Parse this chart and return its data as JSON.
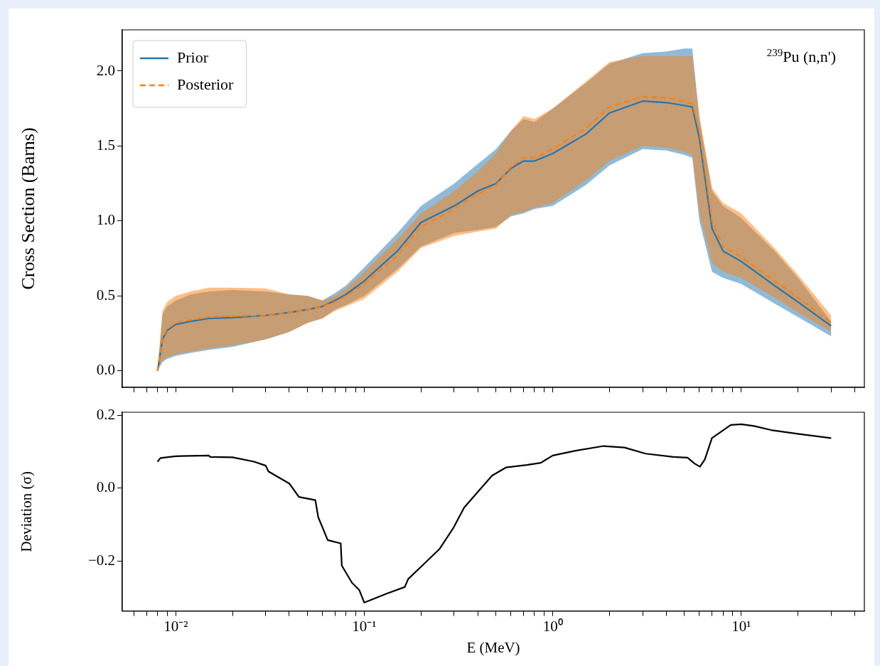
{
  "chart_data": [
    {
      "type": "line",
      "ylabel": "Cross Section (Barns)",
      "legend": "top left",
      "tick_labels": "y",
      "annotations": [
        "$^{239}$Pu (n,n')"
      ],
      "xlim": [
        0.0052,
        45
      ],
      "ylim": [
        -0.11,
        2.275
      ],
      "log": "x",
      "xticks": [
        {
          "value": 0.006,
          "label": null
        },
        {
          "value": 0.007,
          "label": null
        },
        {
          "value": 0.008,
          "label": null
        },
        {
          "value": 0.009,
          "label": null
        },
        {
          "value": 0.01,
          "label": null
        },
        {
          "value": 0.02,
          "label": null
        },
        {
          "value": 0.03,
          "label": null
        },
        {
          "value": 0.04,
          "label": null
        },
        {
          "value": 0.05,
          "label": null
        },
        {
          "value": 0.06,
          "label": null
        },
        {
          "value": 0.07,
          "label": null
        },
        {
          "value": 0.08,
          "label": null
        },
        {
          "value": 0.09,
          "label": null
        },
        {
          "value": 0.1,
          "label": null
        },
        {
          "value": 0.2,
          "label": null
        },
        {
          "value": 0.3,
          "label": null
        },
        {
          "value": 0.4,
          "label": null
        },
        {
          "value": 0.5,
          "label": null
        },
        {
          "value": 0.6,
          "label": null
        },
        {
          "value": 0.7,
          "label": null
        },
        {
          "value": 0.8,
          "label": null
        },
        {
          "value": 0.9,
          "label": null
        },
        {
          "value": 1,
          "label": null
        },
        {
          "value": 2,
          "label": null
        },
        {
          "value": 3,
          "label": null
        },
        {
          "value": 4,
          "label": null
        },
        {
          "value": 5,
          "label": null
        },
        {
          "value": 6,
          "label": null
        },
        {
          "value": 7,
          "label": null
        },
        {
          "value": 8,
          "label": null
        },
        {
          "value": 9,
          "label": null
        },
        {
          "value": 10,
          "label": null
        },
        {
          "value": 20,
          "label": null
        },
        {
          "value": 30,
          "label": null
        },
        {
          "value": 40,
          "label": null
        }
      ],
      "yticks": [
        {
          "value": 0,
          "label": "0.0"
        },
        {
          "value": 0.5,
          "label": "0.5"
        },
        {
          "value": 1,
          "label": "1.0"
        },
        {
          "value": 1.5,
          "label": "1.5"
        },
        {
          "value": 2,
          "label": "2.0"
        }
      ],
      "x": [
        0.008,
        0.0085,
        0.009,
        0.01,
        0.012,
        0.015,
        0.02,
        0.03,
        0.04,
        0.05,
        0.06,
        0.07,
        0.08,
        0.1,
        0.15,
        0.2,
        0.3,
        0.4,
        0.5,
        0.6,
        0.7,
        0.8,
        1,
        1.5,
        2,
        3,
        4,
        5,
        5.5,
        6,
        7,
        8,
        10,
        15,
        20,
        30
      ],
      "series": [
        {
          "name": "Prior",
          "color": "#1f77b4",
          "line_style": "solid",
          "values": [
            0,
            0.21,
            0.27,
            0.31,
            0.33,
            0.35,
            0.355,
            0.37,
            0.39,
            0.41,
            0.43,
            0.47,
            0.51,
            0.6,
            0.8,
            0.99,
            1.1,
            1.2,
            1.25,
            1.35,
            1.4,
            1.4,
            1.45,
            1.58,
            1.72,
            1.8,
            1.79,
            1.77,
            1.76,
            1.55,
            0.95,
            0.8,
            0.73,
            0.57,
            0.46,
            0.3
          ],
          "upper": [
            0,
            0.38,
            0.43,
            0.47,
            0.51,
            0.53,
            0.54,
            0.53,
            0.51,
            0.5,
            0.47,
            0.52,
            0.57,
            0.69,
            0.92,
            1.1,
            1.25,
            1.38,
            1.48,
            1.6,
            1.68,
            1.66,
            1.75,
            1.92,
            2.05,
            2.12,
            2.13,
            2.15,
            2.15,
            1.68,
            1.2,
            1.1,
            1.02,
            0.8,
            0.62,
            0.33
          ],
          "lower": [
            0,
            0.06,
            0.08,
            0.1,
            0.12,
            0.14,
            0.16,
            0.21,
            0.26,
            0.32,
            0.35,
            0.41,
            0.44,
            0.5,
            0.68,
            0.83,
            0.92,
            0.94,
            0.96,
            1.03,
            1.05,
            1.08,
            1.1,
            1.24,
            1.37,
            1.48,
            1.47,
            1.44,
            1.42,
            1,
            0.66,
            0.62,
            0.58,
            0.45,
            0.36,
            0.23
          ]
        },
        {
          "name": "Posterior",
          "color": "#ff7f0e",
          "line_style": "dashed",
          "values": [
            0,
            0.22,
            0.28,
            0.32,
            0.34,
            0.36,
            0.365,
            0.37,
            0.39,
            0.41,
            0.43,
            0.46,
            0.5,
            0.58,
            0.77,
            0.96,
            1.08,
            1.18,
            1.24,
            1.36,
            1.42,
            1.42,
            1.48,
            1.62,
            1.76,
            1.83,
            1.82,
            1.8,
            1.78,
            1.6,
            1,
            0.83,
            0.76,
            0.6,
            0.49,
            0.32
          ],
          "upper": [
            0,
            0.4,
            0.46,
            0.5,
            0.53,
            0.555,
            0.555,
            0.55,
            0.51,
            0.5,
            0.47,
            0.5,
            0.55,
            0.66,
            0.88,
            1.05,
            1.2,
            1.33,
            1.45,
            1.6,
            1.7,
            1.68,
            1.75,
            1.93,
            2.06,
            2.1,
            2.1,
            2.1,
            2.1,
            1.7,
            1.22,
            1.12,
            1.05,
            0.82,
            0.64,
            0.37
          ],
          "lower": [
            0,
            0.07,
            0.09,
            0.11,
            0.13,
            0.15,
            0.17,
            0.21,
            0.26,
            0.32,
            0.35,
            0.4,
            0.43,
            0.48,
            0.66,
            0.82,
            0.9,
            0.93,
            0.95,
            1.04,
            1.06,
            1.09,
            1.12,
            1.27,
            1.4,
            1.5,
            1.49,
            1.46,
            1.44,
            1.05,
            0.72,
            0.66,
            0.62,
            0.49,
            0.39,
            0.26
          ]
        }
      ]
    },
    {
      "type": "line",
      "ylabel": "Deviation (σ)",
      "xlabel": "E (MeV)",
      "xlim": [
        0.0052,
        45
      ],
      "ylim": [
        -0.338,
        0.209
      ],
      "log": "x",
      "xticks": [
        {
          "value": 0.006,
          "label": null
        },
        {
          "value": 0.007,
          "label": null
        },
        {
          "value": 0.008,
          "label": null
        },
        {
          "value": 0.009,
          "label": null
        },
        {
          "value": 0.01,
          "label": "10⁻²"
        },
        {
          "value": 0.02,
          "label": null
        },
        {
          "value": 0.03,
          "label": null
        },
        {
          "value": 0.04,
          "label": null
        },
        {
          "value": 0.05,
          "label": null
        },
        {
          "value": 0.06,
          "label": null
        },
        {
          "value": 0.07,
          "label": null
        },
        {
          "value": 0.08,
          "label": null
        },
        {
          "value": 0.09,
          "label": null
        },
        {
          "value": 0.1,
          "label": "10⁻¹"
        },
        {
          "value": 0.2,
          "label": null
        },
        {
          "value": 0.3,
          "label": null
        },
        {
          "value": 0.4,
          "label": null
        },
        {
          "value": 0.5,
          "label": null
        },
        {
          "value": 0.6,
          "label": null
        },
        {
          "value": 0.7,
          "label": null
        },
        {
          "value": 0.8,
          "label": null
        },
        {
          "value": 0.9,
          "label": null
        },
        {
          "value": 1,
          "label": "10⁰"
        },
        {
          "value": 2,
          "label": null
        },
        {
          "value": 3,
          "label": null
        },
        {
          "value": 4,
          "label": null
        },
        {
          "value": 5,
          "label": null
        },
        {
          "value": 6,
          "label": null
        },
        {
          "value": 7,
          "label": null
        },
        {
          "value": 8,
          "label": null
        },
        {
          "value": 9,
          "label": null
        },
        {
          "value": 10,
          "label": "10¹"
        },
        {
          "value": 20,
          "label": null
        },
        {
          "value": 30,
          "label": null
        },
        {
          "value": 40,
          "label": null
        }
      ],
      "yticks": [
        {
          "value": -0.2,
          "label": "−0.2"
        },
        {
          "value": 0,
          "label": "0.0"
        },
        {
          "value": 0.2,
          "label": "0.2"
        }
      ],
      "x": [
        0.008,
        0.0083,
        0.01,
        0.015,
        0.0152,
        0.02,
        0.026,
        0.03,
        0.031,
        0.04,
        0.045,
        0.055,
        0.057,
        0.064,
        0.075,
        0.076,
        0.086,
        0.094,
        0.1,
        0.132,
        0.164,
        0.171,
        0.203,
        0.251,
        0.298,
        0.339,
        0.402,
        0.477,
        0.565,
        0.73,
        0.865,
        1,
        1.32,
        1.86,
        2.4,
        3.11,
        4.37,
        5.19,
        5.65,
        6.04,
        6.41,
        6.99,
        7.94,
        8.8,
        10,
        11.7,
        14.4,
        20.3,
        30
      ],
      "series": [
        {
          "color": "#000000",
          "values": [
            0.073,
            0.083,
            0.088,
            0.09,
            0.086,
            0.085,
            0.073,
            0.062,
            0.046,
            0.013,
            -0.024,
            -0.033,
            -0.08,
            -0.143,
            -0.152,
            -0.213,
            -0.26,
            -0.28,
            -0.315,
            -0.29,
            -0.272,
            -0.25,
            -0.213,
            -0.167,
            -0.108,
            -0.053,
            -0.009,
            0.035,
            0.057,
            0.064,
            0.07,
            0.09,
            0.103,
            0.116,
            0.112,
            0.095,
            0.086,
            0.084,
            0.068,
            0.059,
            0.079,
            0.138,
            0.158,
            0.174,
            0.176,
            0.171,
            0.16,
            0.149,
            0.138
          ]
        }
      ]
    }
  ]
}
